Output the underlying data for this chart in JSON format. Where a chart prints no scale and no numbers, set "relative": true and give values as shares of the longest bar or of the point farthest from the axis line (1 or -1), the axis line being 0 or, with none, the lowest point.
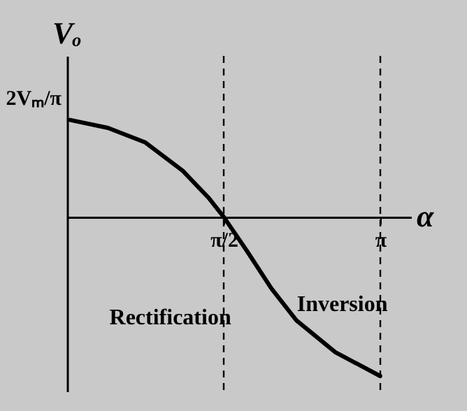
{
  "chart_data": {
    "type": "line",
    "relative": true,
    "xlabel": "α",
    "ylabel": "Vₒ",
    "x": [
      0.03,
      0.41,
      0.78,
      1.16,
      1.42,
      1.5708,
      1.8,
      2.05,
      2.3,
      2.69,
      3.14
    ],
    "series": [
      {
        "color": "#000000",
        "values": [
          0.61,
          0.56,
          0.47,
          0.29,
          0.12,
          0,
          -0.21,
          -0.45,
          -0.65,
          -0.85,
          -1.0
        ]
      }
    ],
    "xlim": [
      0,
      3.45
    ],
    "xticks": [
      {
        "value": 1.5708,
        "label": "π/2"
      },
      {
        "value": 3.1416,
        "label": "π"
      }
    ],
    "ref_lines": [
      {
        "axis": "x",
        "value": 1.5708,
        "line_style": "dashed"
      },
      {
        "axis": "x",
        "value": 3.1416,
        "line_style": "dashed"
      }
    ],
    "annotations": [
      "2Vₘ/π",
      "Rectification",
      "Inversion"
    ],
    "marker": "none",
    "line_style": "solid",
    "grid": false
  }
}
